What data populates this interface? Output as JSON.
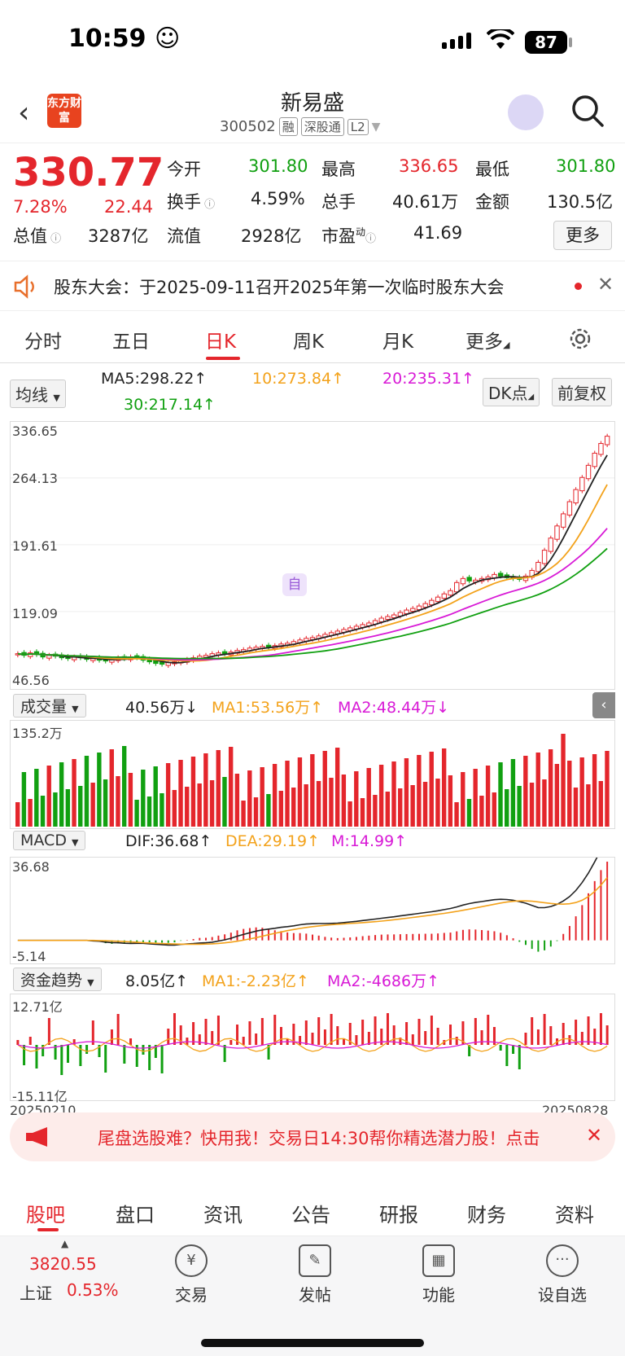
{
  "status": {
    "time": "10:59 ☺",
    "battery": "87"
  },
  "header": {
    "logo": "东方财富",
    "stock_name": "新易盛",
    "code": "300502",
    "tags": [
      "融",
      "深股通",
      "L2"
    ]
  },
  "quote": {
    "price": "330.77",
    "change_pct": "7.28%",
    "change": "22.44",
    "fields": {
      "open_label": "今开",
      "open": "301.80",
      "high_label": "最高",
      "high": "336.65",
      "low_label": "最低",
      "low": "301.80",
      "turnover_label": "换手",
      "turnover": "4.59%",
      "volume_label": "总手",
      "volume": "40.61万",
      "amount_label": "金额",
      "amount": "130.5亿",
      "mktcap_label": "总值",
      "mktcap": "3287亿",
      "float_label": "流值",
      "float": "2928亿",
      "pe_label": "市盈",
      "pe_sup": "动",
      "pe": "41.69"
    },
    "more": "更多"
  },
  "notice": {
    "text": "股东大会：于2025-09-11召开2025年第一次临时股东大会"
  },
  "tabs": [
    "分时",
    "五日",
    "日K",
    "周K",
    "月K",
    "更多"
  ],
  "ma": {
    "selector": "均线",
    "ma5": "MA5:298.22↑",
    "ma10": "10:273.84↑",
    "ma20": "20:235.31↑",
    "ma30": "30:217.14↑",
    "dk": "DK点",
    "adjust": "前复权"
  },
  "kline": {
    "y_labels": [
      "336.65",
      "264.13",
      "191.61",
      "119.09",
      "46.56"
    ],
    "marker_self": "自",
    "closes": [
      62,
      60,
      63,
      61,
      58,
      60,
      59,
      57,
      56,
      58,
      57,
      55,
      56,
      54,
      53,
      55,
      57,
      56,
      58,
      57,
      54,
      52,
      50,
      49,
      51,
      52,
      53,
      55,
      57,
      59,
      60,
      62,
      63,
      62,
      64,
      66,
      67,
      69,
      70,
      71,
      70,
      72,
      74,
      75,
      77,
      79,
      81,
      82,
      84,
      86,
      88,
      90,
      92,
      94,
      96,
      98,
      100,
      103,
      106,
      108,
      110,
      113,
      116,
      118,
      121,
      124,
      128,
      132,
      136,
      140,
      150,
      155,
      152,
      153,
      155,
      157,
      160,
      158,
      156,
      155,
      154,
      158,
      165,
      175,
      190,
      205,
      220,
      235,
      250,
      265,
      280,
      295,
      310,
      322,
      331
    ],
    "colors": {
      "ma5": "#222222",
      "ma10": "#f3a21b",
      "ma20": "#d81ad6",
      "ma30": "#11a011",
      "up": "#e4262c",
      "down": "#11a011"
    }
  },
  "volume": {
    "selector": "成交量",
    "value": "40.56万↓",
    "ma1": "MA1:53.56万↑",
    "ma2": "MA2:48.44万↓",
    "y_label": "135.2万"
  },
  "macd": {
    "selector": "MACD",
    "dif": "DIF:36.68↑",
    "dea": "DEA:29.19↑",
    "m": "M:14.99↑",
    "y_top": "36.68",
    "y_bottom": "-5.14"
  },
  "fund": {
    "selector": "资金趋势",
    "value": "8.05亿↑",
    "ma1": "MA1:-2.23亿↑",
    "ma2": "MA2:-4686万↑",
    "y_top": "12.71亿",
    "y_bottom": "-15.11亿",
    "date_start": "20250210",
    "date_end": "20250828"
  },
  "banner": {
    "text": "尾盘选股难？快用我！交易日14:30帮你精选潜力股！点击"
  },
  "bottom_tabs": [
    "股吧",
    "盘口",
    "资讯",
    "公告",
    "研报",
    "财务",
    "资料"
  ],
  "footer": {
    "index_value": "3820.55",
    "index_name": "上证",
    "index_change": "0.53%",
    "tools": [
      "交易",
      "发帖",
      "功能",
      "设自选"
    ]
  }
}
